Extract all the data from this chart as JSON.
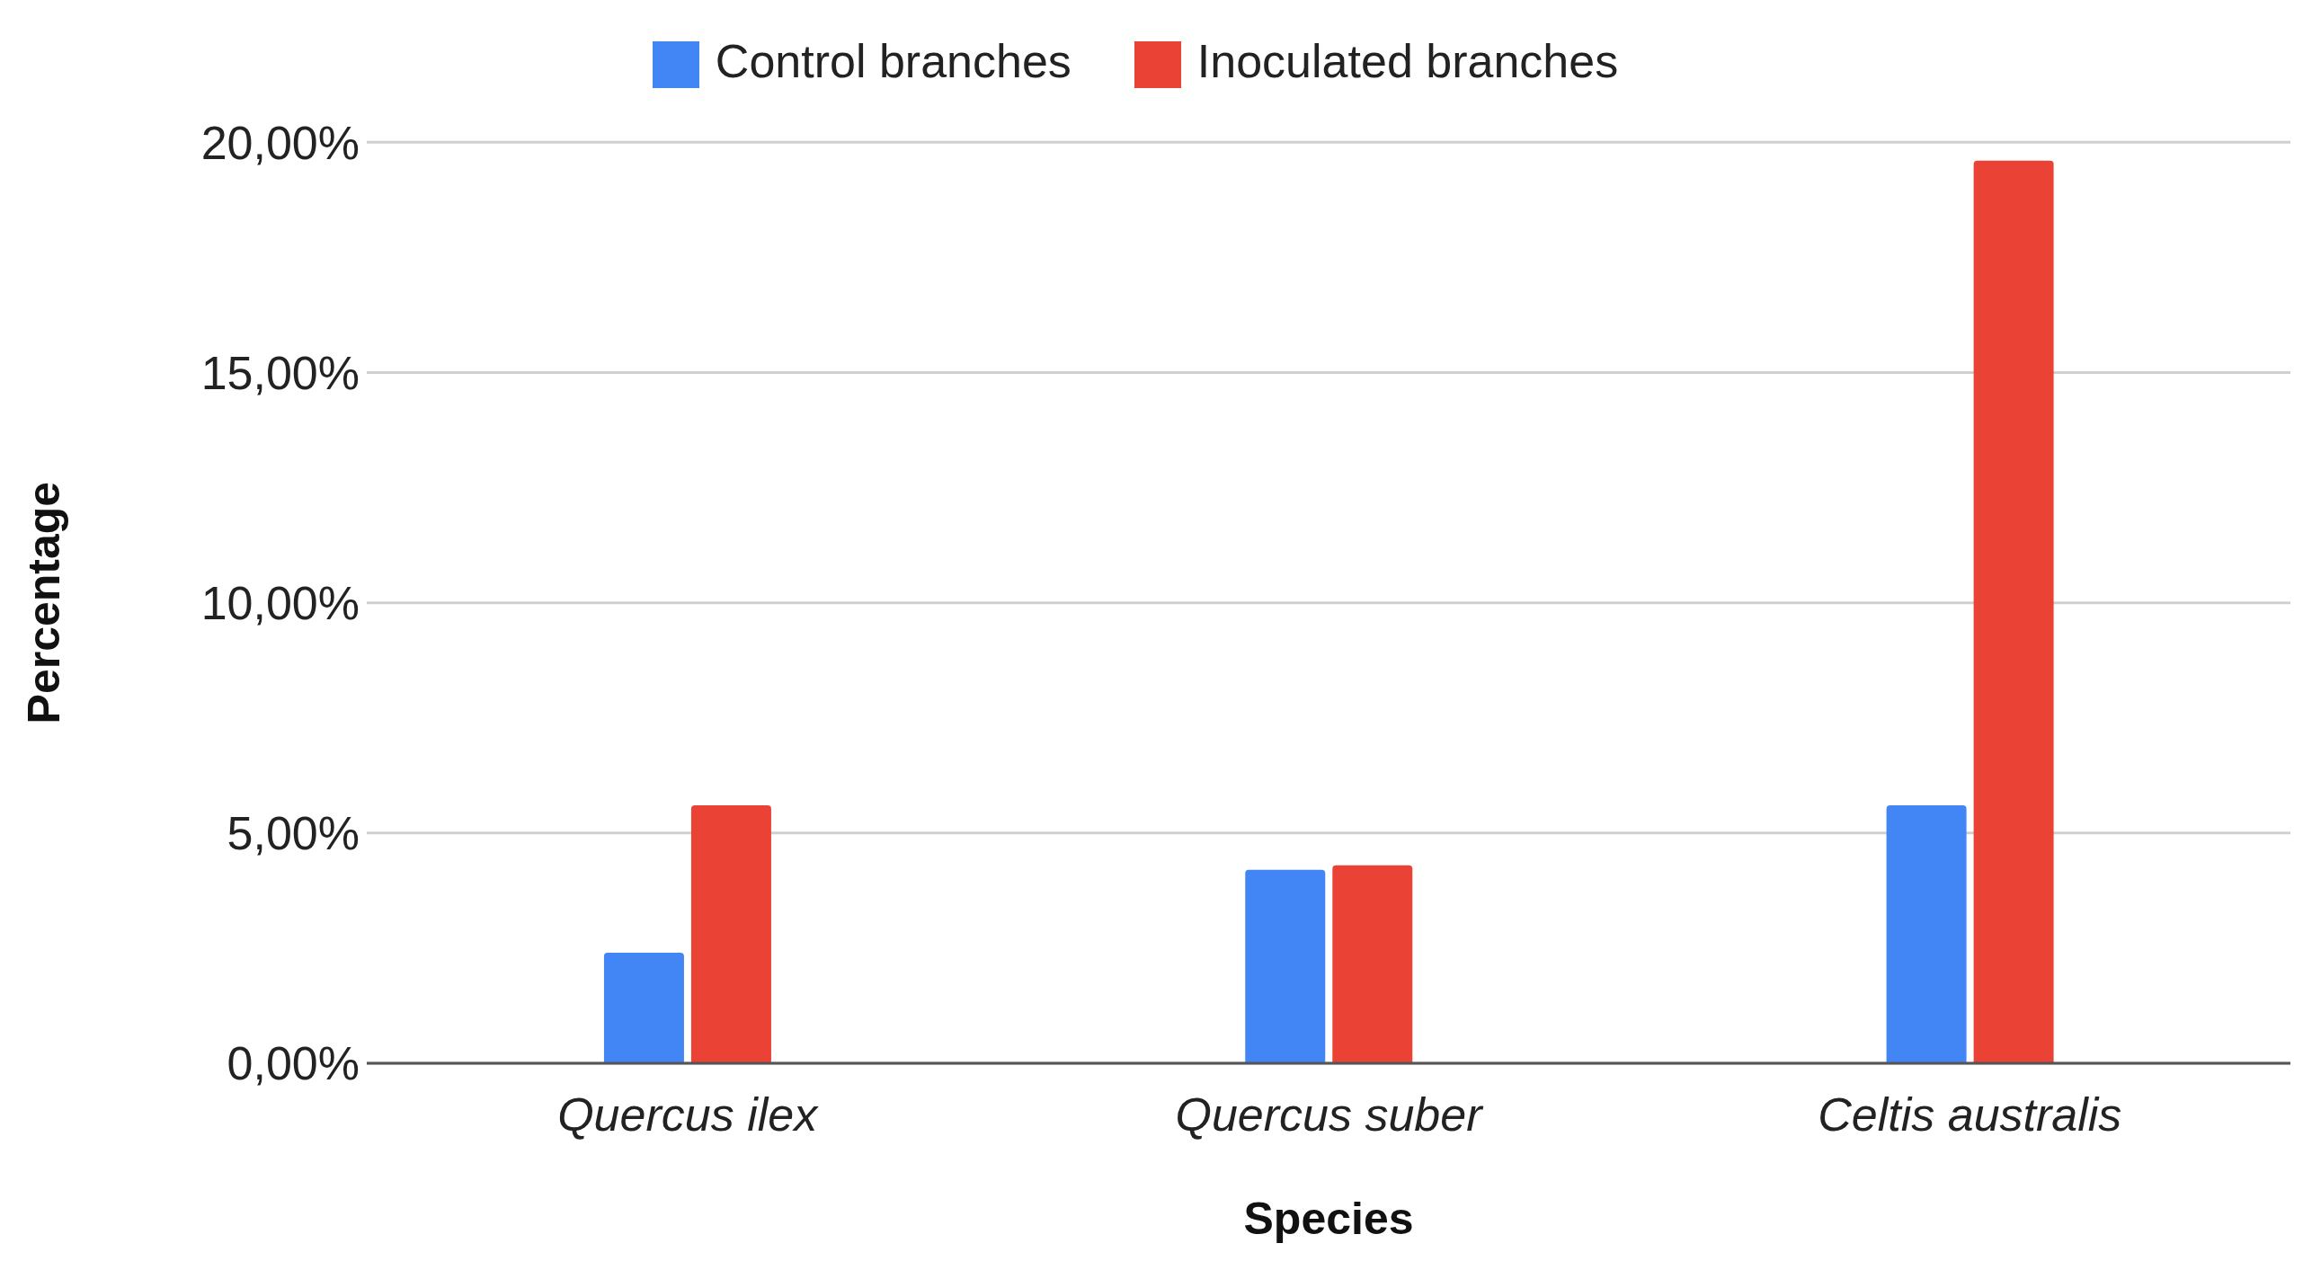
{
  "chart_data": {
    "type": "bar",
    "xlabel": "Species",
    "ylabel": "Percentage",
    "categories": [
      "Quercus ilex",
      "Quercus suber",
      "Celtis australis"
    ],
    "series": [
      {
        "name": "Control branches",
        "color": "#4285f4",
        "values": [
          2.4,
          4.2,
          5.6
        ]
      },
      {
        "name": "Inoculated branches",
        "color": "#ea4335",
        "values": [
          5.6,
          4.3,
          19.6
        ]
      }
    ],
    "ylim": [
      0,
      20
    ],
    "yticks": [
      {
        "value": 0,
        "label": "0,00%"
      },
      {
        "value": 5,
        "label": "5,00%"
      },
      {
        "value": 10,
        "label": "10,00%"
      },
      {
        "value": 15,
        "label": "15,00%"
      },
      {
        "value": 20,
        "label": "20,00%"
      }
    ],
    "grid": "y",
    "legend": "top"
  }
}
